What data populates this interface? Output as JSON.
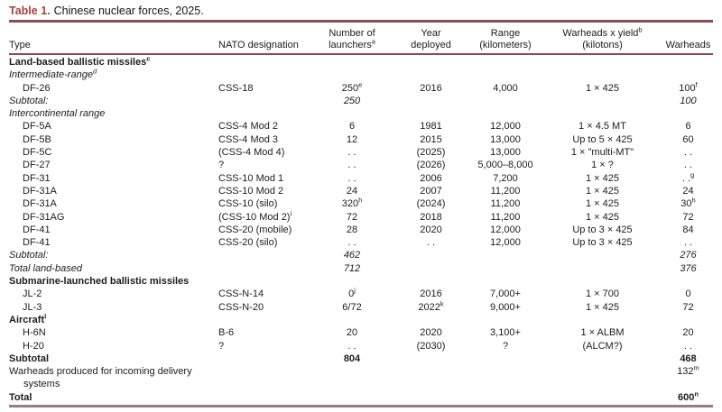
{
  "accent_colors": {
    "title_red": "#a8403d",
    "rule_maroon": "#8e4a52",
    "rule_bottom_mauve": "#9b7b85"
  },
  "table": {
    "title_label": "Table 1.",
    "title_text": "Chinese nuclear forces, 2025.",
    "columns": [
      {
        "id": "type",
        "label": "Type"
      },
      {
        "id": "nato-designation",
        "label": "NATO designation"
      },
      {
        "id": "number-of-launchers",
        "label": "Number of\nlaunchers^a"
      },
      {
        "id": "year-deployed",
        "label": "Year\ndeployed"
      },
      {
        "id": "range-kilometers",
        "label": "Range\n(kilometers)"
      },
      {
        "id": "warheads-x-yield",
        "label": "Warheads x yield^b\n(kilotons)"
      },
      {
        "id": "warheads",
        "label": "Warheads"
      }
    ],
    "rows": [
      {
        "style": "section",
        "cells": [
          "Land-based ballistic missiles^c",
          "",
          "",
          "",
          "",
          "",
          ""
        ]
      },
      {
        "style": "italic",
        "cells": [
          "Intermediate-range^d",
          "",
          "",
          "",
          "",
          "",
          ""
        ]
      },
      {
        "style": "normal",
        "indent": true,
        "cells": [
          "DF-26",
          "CSS-18",
          "250^e",
          "2016",
          "4,000",
          "1 × 425",
          "100^f"
        ]
      },
      {
        "style": "italic",
        "cells": [
          "Subtotal:",
          "",
          "250",
          "",
          "",
          "",
          "100"
        ]
      },
      {
        "style": "italic",
        "cells": [
          "Intercontinental range",
          "",
          "",
          "",
          "",
          "",
          ""
        ]
      },
      {
        "style": "normal",
        "indent": true,
        "cells": [
          "DF-5A",
          "CSS-4 Mod 2",
          "6",
          "1981",
          "12,000",
          "1 × 4.5 MT",
          "6"
        ]
      },
      {
        "style": "normal",
        "indent": true,
        "cells": [
          "DF-5B",
          "CSS-4 Mod 3",
          "12",
          "2015",
          "13,000",
          "Up to 5 × 425",
          "60"
        ]
      },
      {
        "style": "normal",
        "indent": true,
        "cells": [
          "DF-5C",
          "(CSS-4 Mod 4)",
          ". .",
          "(2025)",
          "13,000",
          "1 × \"multi-MT\"",
          ". ."
        ]
      },
      {
        "style": "normal",
        "indent": true,
        "cells": [
          "DF-27",
          "?",
          ". .",
          "(2026)",
          "5,000–8,000",
          "1 × ?",
          ". ."
        ]
      },
      {
        "style": "normal",
        "indent": true,
        "cells": [
          "DF-31",
          "CSS-10 Mod 1",
          ". .",
          "2006",
          "7,200",
          "1 × 425",
          ". .^g"
        ]
      },
      {
        "style": "normal",
        "indent": true,
        "cells": [
          "DF-31A",
          "CSS-10 Mod 2",
          "24",
          "2007",
          "11,200",
          "1 × 425",
          "24"
        ]
      },
      {
        "style": "normal",
        "indent": true,
        "cells": [
          "DF-31A",
          "CSS-10 (silo)",
          "320^h",
          "(2024)",
          "11,200",
          "1 × 425",
          "30^h"
        ]
      },
      {
        "style": "normal",
        "indent": true,
        "cells": [
          "DF-31AG",
          "(CSS-10 Mod 2)^i",
          "72",
          "2018",
          "11,200",
          "1 × 425",
          "72"
        ]
      },
      {
        "style": "normal",
        "indent": true,
        "cells": [
          "DF-41",
          "CSS-20 (mobile)",
          "28",
          "2020",
          "12,000",
          "Up to 3 × 425",
          "84"
        ]
      },
      {
        "style": "normal",
        "indent": true,
        "cells": [
          "DF-41",
          "CSS-20 (silo)",
          ". .",
          ". .",
          "12,000",
          "Up to 3 × 425",
          ". ."
        ]
      },
      {
        "style": "italic",
        "cells": [
          "Subtotal:",
          "",
          "462",
          "",
          "",
          "",
          "276"
        ]
      },
      {
        "style": "italic",
        "cells": [
          "Total land-based",
          "",
          "712",
          "",
          "",
          "",
          "376"
        ]
      },
      {
        "style": "section",
        "cells": [
          "Submarine-launched ballistic missiles",
          "",
          "",
          "",
          "",
          "",
          ""
        ]
      },
      {
        "style": "normal",
        "indent": true,
        "cells": [
          "JL-2",
          "CSS-N-14",
          "0^j",
          "2016",
          "7,000+",
          "1 × 700",
          "0"
        ]
      },
      {
        "style": "normal",
        "indent": true,
        "cells": [
          "JL-3",
          "CSS-N-20",
          "6/72",
          "2022^k",
          "9,000+",
          "1 × 425",
          "72"
        ]
      },
      {
        "style": "section",
        "cells": [
          "Aircraft^l",
          "",
          "",
          "",
          "",
          "",
          ""
        ]
      },
      {
        "style": "normal",
        "indent": true,
        "cells": [
          "H-6N",
          "B-6",
          "20",
          "2020",
          "3,100+",
          "1 × ALBM",
          "20"
        ]
      },
      {
        "style": "normal",
        "indent": true,
        "cells": [
          "H-20",
          "?",
          ". .",
          "(2030)",
          "?",
          "(ALCM?)",
          ". ."
        ]
      },
      {
        "style": "bold",
        "cells": [
          "Subtotal",
          "",
          "804",
          "",
          "",
          "",
          "468"
        ]
      },
      {
        "style": "normal",
        "hang": true,
        "cells": [
          "Warheads produced for incoming delivery systems",
          "",
          "",
          "",
          "",
          "",
          "132^m"
        ]
      },
      {
        "style": "bold",
        "cells": [
          "Total",
          "",
          "",
          "",
          "",
          "",
          "600^n"
        ]
      }
    ]
  }
}
